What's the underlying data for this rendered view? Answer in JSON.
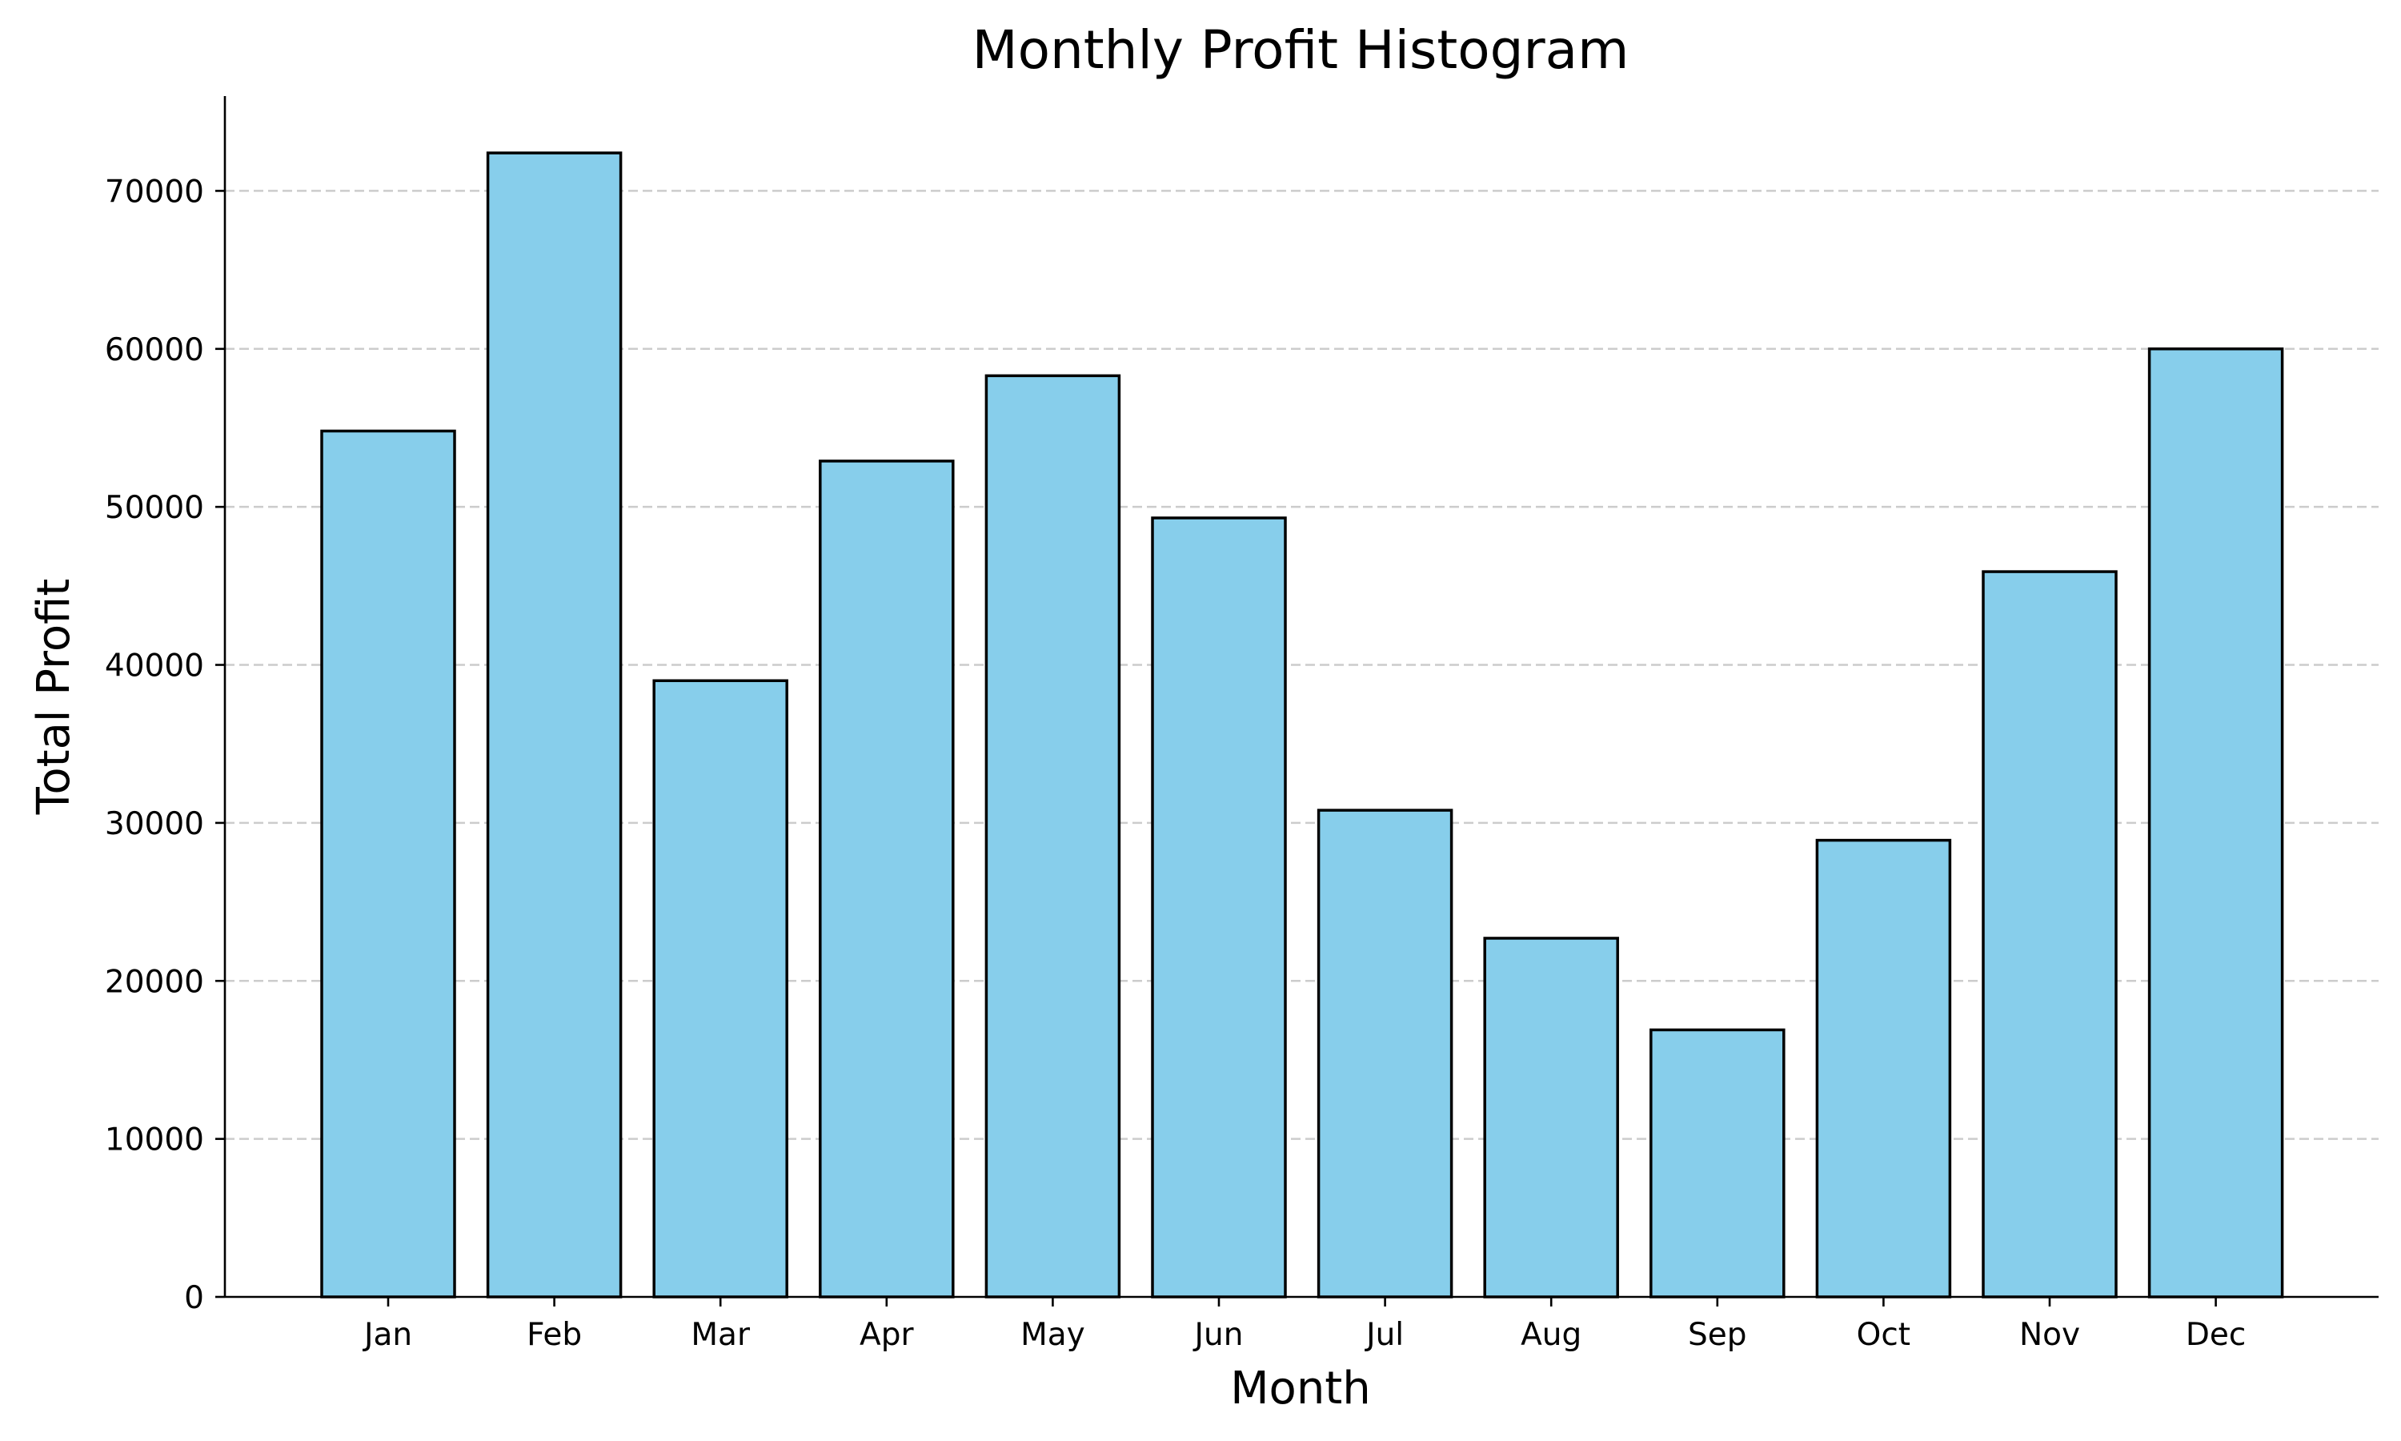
{
  "chart_data": {
    "type": "bar",
    "title": "Monthly Profit Histogram",
    "xlabel": "Month",
    "ylabel": "Total Profit",
    "categories": [
      "Jan",
      "Feb",
      "Mar",
      "Apr",
      "May",
      "Jun",
      "Jul",
      "Aug",
      "Sep",
      "Oct",
      "Nov",
      "Dec"
    ],
    "values": [
      54800,
      72400,
      39000,
      52900,
      58300,
      49300,
      30800,
      22700,
      16900,
      28900,
      45900,
      60000
    ],
    "ylim": [
      0,
      76000
    ],
    "yticks": [
      0,
      10000,
      20000,
      30000,
      40000,
      50000,
      60000,
      70000
    ],
    "ytick_labels": [
      "0",
      "10000",
      "20000",
      "30000",
      "40000",
      "50000",
      "60000",
      "70000"
    ],
    "grid": "horizontal dashed",
    "legend": "none",
    "colors": {
      "bar_fill": "#87CEEB",
      "bar_edge": "#000000",
      "grid": "#cccccc"
    }
  }
}
